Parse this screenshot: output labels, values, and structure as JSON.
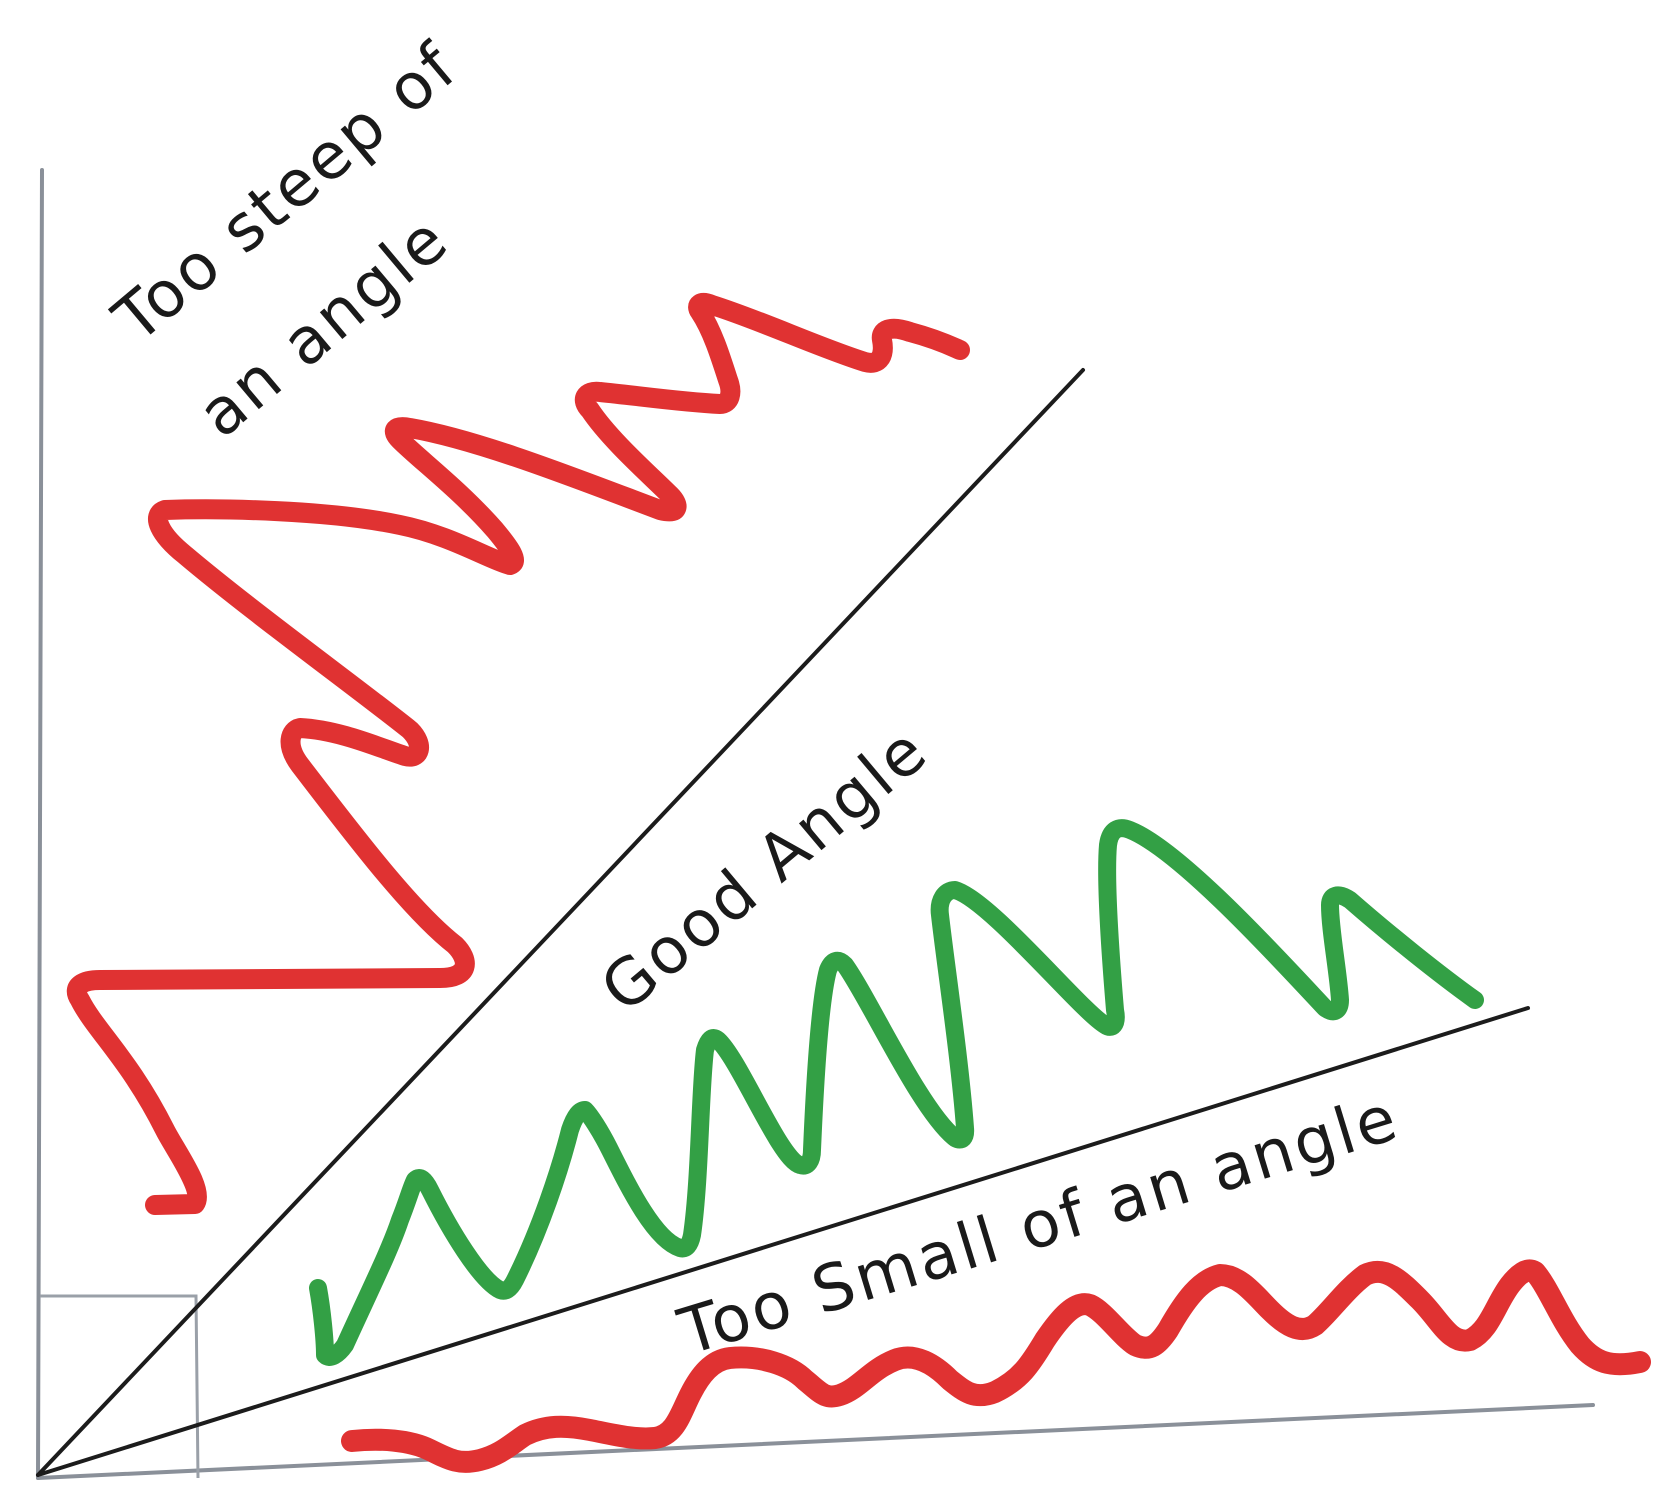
{
  "labels": {
    "steep_line1": "Too steep of",
    "steep_line2": "an angle",
    "good": "Good Angle",
    "small": "Too Small of an angle"
  },
  "colors": {
    "bad": "#e03232",
    "good": "#33a045",
    "ray": "#1c1c1c",
    "axis": "#8a9099"
  }
}
